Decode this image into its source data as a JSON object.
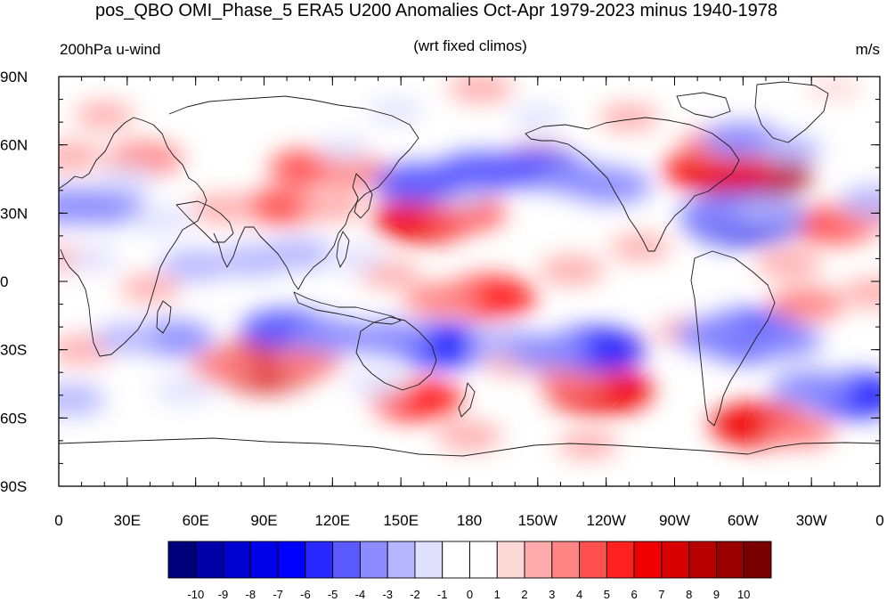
{
  "figure": {
    "title": "pos_QBO OMI_Phase_5 ERA5 U200 Anomalies Oct-Apr 1979-2023 minus 1940-1978",
    "left_label": "200hPa u-wind",
    "center_label": "(wrt fixed climos)",
    "right_label": "m/s"
  },
  "map": {
    "projection": "cylindrical-equidistant",
    "lon_range": [
      0,
      360
    ],
    "lat_range": [
      -90,
      90
    ],
    "y_ticks": [
      {
        "lat": 90,
        "label": "90N"
      },
      {
        "lat": 60,
        "label": "60N"
      },
      {
        "lat": 30,
        "label": "30N"
      },
      {
        "lat": 0,
        "label": "0"
      },
      {
        "lat": -30,
        "label": "30S"
      },
      {
        "lat": -60,
        "label": "60S"
      },
      {
        "lat": -90,
        "label": "90S"
      }
    ],
    "x_ticks": [
      {
        "lon": 0,
        "label": "0"
      },
      {
        "lon": 30,
        "label": "30E"
      },
      {
        "lon": 60,
        "label": "60E"
      },
      {
        "lon": 90,
        "label": "90E"
      },
      {
        "lon": 120,
        "label": "120E"
      },
      {
        "lon": 150,
        "label": "150E"
      },
      {
        "lon": 180,
        "label": "180"
      },
      {
        "lon": 210,
        "label": "150W"
      },
      {
        "lon": 240,
        "label": "120W"
      },
      {
        "lon": 270,
        "label": "90W"
      },
      {
        "lon": 300,
        "label": "60W"
      },
      {
        "lon": 330,
        "label": "30W"
      },
      {
        "lon": 360,
        "label": "0"
      }
    ]
  },
  "colorbar": {
    "colors": [
      "#00007a",
      "#0000a8",
      "#0000d0",
      "#0000ea",
      "#0000ff",
      "#2828ff",
      "#5a5aff",
      "#8c8cff",
      "#b4b4ff",
      "#e0e0ff",
      "#ffffff",
      "#ffffff",
      "#ffd8d8",
      "#ffaaaa",
      "#ff8484",
      "#ff5050",
      "#ff2020",
      "#f00000",
      "#d80000",
      "#b80000",
      "#9a0000",
      "#7a0000"
    ],
    "labels": [
      "-10",
      "-9",
      "-8",
      "-7",
      "-6",
      "-5",
      "-4",
      "-3",
      "-2",
      "-1",
      "0",
      "1",
      "2",
      "3",
      "4",
      "5",
      "6",
      "7",
      "8",
      "9",
      "10"
    ]
  },
  "anomaly_blobs": [
    {
      "lon": 185,
      "lat": 85,
      "value": 2.5
    },
    {
      "lon": 160,
      "lat": 27,
      "value": 6
    },
    {
      "lon": 178,
      "lat": 30,
      "value": 4
    },
    {
      "lon": 188,
      "lat": -7,
      "value": 5.5
    },
    {
      "lon": 168,
      "lat": -8,
      "value": 3.5
    },
    {
      "lon": 285,
      "lat": 49,
      "value": 5
    },
    {
      "lon": 303,
      "lat": 47,
      "value": 8
    },
    {
      "lon": 293,
      "lat": 50,
      "value": 6
    },
    {
      "lon": 288,
      "lat": 60,
      "value": 3
    },
    {
      "lon": 90,
      "lat": -37,
      "value": 7.5
    },
    {
      "lon": 73,
      "lat": -37,
      "value": 3
    },
    {
      "lon": 108,
      "lat": -36,
      "value": 3
    },
    {
      "lon": 237,
      "lat": -48,
      "value": 6.5
    },
    {
      "lon": 225,
      "lat": -42,
      "value": 3
    },
    {
      "lon": 157,
      "lat": -52,
      "value": 5
    },
    {
      "lon": 308,
      "lat": -63,
      "value": 6
    },
    {
      "lon": 325,
      "lat": -66,
      "value": 3
    },
    {
      "lon": 98,
      "lat": 33,
      "value": 4
    },
    {
      "lon": 72,
      "lat": 32,
      "value": 2.5
    },
    {
      "lon": 120,
      "lat": 33,
      "value": 2.5
    },
    {
      "lon": 38,
      "lat": 54,
      "value": 3.5
    },
    {
      "lon": 5,
      "lat": 55,
      "value": 2.5
    },
    {
      "lon": 110,
      "lat": 50,
      "value": 4
    },
    {
      "lon": 130,
      "lat": 48,
      "value": 3
    },
    {
      "lon": 340,
      "lat": 25,
      "value": 4.5
    },
    {
      "lon": 355,
      "lat": 30,
      "value": 3
    },
    {
      "lon": 320,
      "lat": 8,
      "value": 2.5
    },
    {
      "lon": 328,
      "lat": -10,
      "value": 3.5
    },
    {
      "lon": 358,
      "lat": -5,
      "value": 2.5
    },
    {
      "lon": 225,
      "lat": 5,
      "value": 2.5
    },
    {
      "lon": 210,
      "lat": 55,
      "value": 2.5
    },
    {
      "lon": 255,
      "lat": 15,
      "value": 2
    },
    {
      "lon": 200,
      "lat": -35,
      "value": 2.5
    },
    {
      "lon": 10,
      "lat": -30,
      "value": 2.5
    },
    {
      "lon": 40,
      "lat": -3,
      "value": 2
    },
    {
      "lon": 180,
      "lat": -68,
      "value": 2.5
    },
    {
      "lon": 232,
      "lat": -72,
      "value": 2
    },
    {
      "lon": 245,
      "lat": -28,
      "value": 2
    },
    {
      "lon": 20,
      "lat": 73,
      "value": 2
    },
    {
      "lon": 250,
      "lat": 72,
      "value": 2
    },
    {
      "lon": 340,
      "lat": 85,
      "value": 1.5
    },
    {
      "lon": 275,
      "lat": -22,
      "value": 2
    },
    {
      "lon": 145,
      "lat": 3,
      "value": 2
    },
    {
      "lon": 5,
      "lat": 10,
      "value": 2
    },
    {
      "lon": 175,
      "lat": 38,
      "value": -2
    },
    {
      "lon": 158,
      "lat": 43,
      "value": -5
    },
    {
      "lon": 185,
      "lat": 48,
      "value": -5
    },
    {
      "lon": 210,
      "lat": 50,
      "value": -5
    },
    {
      "lon": 228,
      "lat": 45,
      "value": -3.5
    },
    {
      "lon": 242,
      "lat": 42,
      "value": -4
    },
    {
      "lon": 300,
      "lat": 28,
      "value": -8
    },
    {
      "lon": 290,
      "lat": 30,
      "value": -4
    },
    {
      "lon": 312,
      "lat": 31,
      "value": -3
    },
    {
      "lon": 20,
      "lat": 33,
      "value": -4
    },
    {
      "lon": 5,
      "lat": 33,
      "value": -4
    },
    {
      "lon": 358,
      "lat": 35,
      "value": -3
    },
    {
      "lon": 45,
      "lat": 27,
      "value": -2
    },
    {
      "lon": 60,
      "lat": 7,
      "value": -3
    },
    {
      "lon": 85,
      "lat": 9,
      "value": -3
    },
    {
      "lon": 105,
      "lat": 12,
      "value": -3
    },
    {
      "lon": 130,
      "lat": 10,
      "value": -2
    },
    {
      "lon": 100,
      "lat": -21,
      "value": -5
    },
    {
      "lon": 120,
      "lat": -24,
      "value": -4
    },
    {
      "lon": 50,
      "lat": -25,
      "value": -4
    },
    {
      "lon": 30,
      "lat": -25,
      "value": -2.5
    },
    {
      "lon": 168,
      "lat": -28,
      "value": -6
    },
    {
      "lon": 145,
      "lat": -25,
      "value": -4
    },
    {
      "lon": 195,
      "lat": -27,
      "value": -3
    },
    {
      "lon": 235,
      "lat": -30,
      "value": -6
    },
    {
      "lon": 215,
      "lat": -31,
      "value": -4
    },
    {
      "lon": 302,
      "lat": -24,
      "value": -7
    },
    {
      "lon": 288,
      "lat": -24,
      "value": -4
    },
    {
      "lon": 318,
      "lat": -26,
      "value": -3.5
    },
    {
      "lon": 348,
      "lat": -50,
      "value": -6
    },
    {
      "lon": 330,
      "lat": -47,
      "value": -4
    },
    {
      "lon": 5,
      "lat": -52,
      "value": -3
    },
    {
      "lon": 300,
      "lat": 62,
      "value": -4
    },
    {
      "lon": 320,
      "lat": 58,
      "value": -2.5
    },
    {
      "lon": 140,
      "lat": -45,
      "value": -2
    },
    {
      "lon": 125,
      "lat": 58,
      "value": -1.5
    },
    {
      "lon": 148,
      "lat": 75,
      "value": -1.5
    },
    {
      "lon": 30,
      "lat": 45,
      "value": -2
    },
    {
      "lon": 55,
      "lat": -48,
      "value": -2
    },
    {
      "lon": 210,
      "lat": 72,
      "value": -1.5
    },
    {
      "lon": 15,
      "lat": 10,
      "value": -1.5
    }
  ]
}
